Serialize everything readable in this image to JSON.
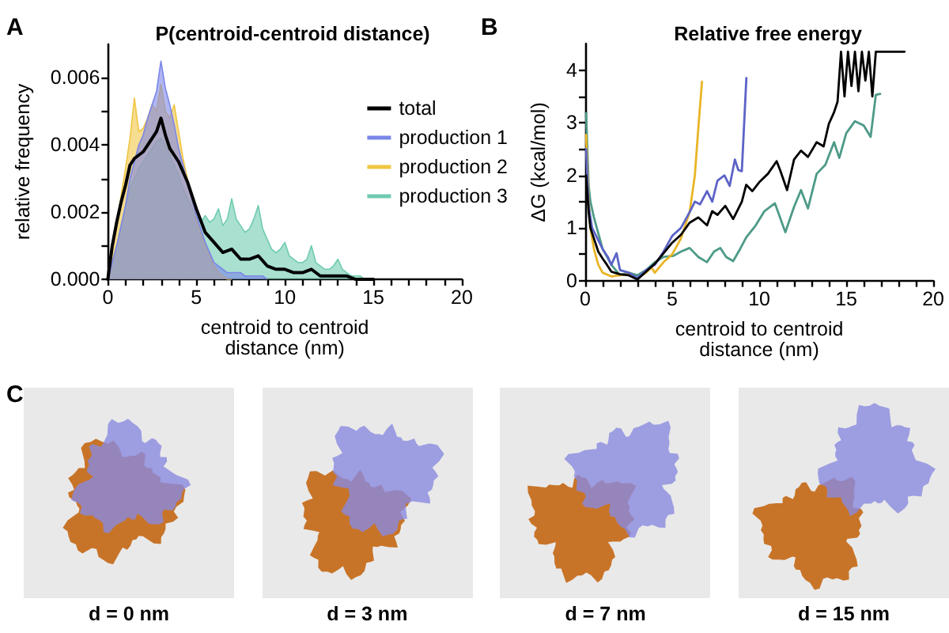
{
  "chart_data": [
    {
      "type": "area",
      "title": "P(centroid-centroid distance)",
      "xlabel": "centroid to centroid distance (nm)",
      "ylabel": "relative frequency",
      "annotations": [
        "A"
      ],
      "legend": "top right",
      "xlim": [
        0,
        20
      ],
      "xticks": [
        0,
        {
          "value": 1,
          "label": null
        },
        {
          "value": 2,
          "label": null
        },
        {
          "value": 3,
          "label": null
        },
        {
          "value": 4,
          "label": null
        },
        5,
        {
          "value": 6,
          "label": null
        },
        {
          "value": 7,
          "label": null
        },
        {
          "value": 8,
          "label": null
        },
        {
          "value": 9,
          "label": null
        },
        10,
        {
          "value": 11,
          "label": null
        },
        {
          "value": 12,
          "label": null
        },
        {
          "value": 13,
          "label": null
        },
        {
          "value": 14,
          "label": null
        },
        15,
        {
          "value": 16,
          "label": null
        },
        {
          "value": 17,
          "label": null
        },
        {
          "value": 18,
          "label": null
        },
        {
          "value": 19,
          "label": null
        },
        20
      ],
      "ylim": [
        0,
        0.007
      ],
      "yticks": [
        {
          "value": 0,
          "label": "0.000"
        },
        {
          "value": 0.001,
          "label": null
        },
        0.002,
        {
          "value": 0.003,
          "label": null
        },
        0.004,
        {
          "value": 0.005,
          "label": null
        },
        0.006
      ],
      "series": [
        {
          "name": "total",
          "type": "line",
          "color": "#000000",
          "x": [
            0,
            0.25,
            0.5,
            0.75,
            1,
            1.25,
            1.5,
            1.75,
            2,
            2.25,
            2.5,
            2.75,
            3,
            3.25,
            3.5,
            3.75,
            4,
            4.25,
            4.5,
            4.75,
            5,
            5.5,
            6,
            6.5,
            7,
            7.5,
            8,
            8.5,
            9,
            9.5,
            10,
            10.5,
            11,
            11.5,
            12,
            12.5,
            13,
            13.5,
            14,
            14.5,
            15
          ],
          "values": [
            0,
            0.001,
            0.0017,
            0.0023,
            0.0028,
            0.0034,
            0.0036,
            0.0037,
            0.0038,
            0.004,
            0.0042,
            0.0044,
            0.0048,
            0.0043,
            0.0039,
            0.0037,
            0.0035,
            0.0032,
            0.0029,
            0.0025,
            0.0021,
            0.0014,
            0.0011,
            0.0008,
            0.0009,
            0.0006,
            0.0006,
            0.0007,
            0.0004,
            0.0003,
            0.0003,
            0.0002,
            0.0002,
            0.0003,
            0.0001,
            0.0001,
            0.0001,
            0.0001,
            0,
            0,
            0
          ]
        },
        {
          "name": "production 1",
          "color": "#7b86e8",
          "x": [
            0,
            0.25,
            0.5,
            0.75,
            1,
            1.25,
            1.5,
            1.75,
            2,
            2.25,
            2.5,
            2.75,
            3,
            3.25,
            3.5,
            3.75,
            4,
            4.25,
            4.5,
            4.75,
            5,
            5.25,
            5.5,
            5.75,
            6,
            6.25,
            6.5,
            6.75,
            7,
            7.25,
            7.5,
            7.75,
            8,
            8.25,
            8.5,
            8.75,
            9
          ],
          "values": [
            0,
            0.0005,
            0.001,
            0.0016,
            0.0022,
            0.003,
            0.0035,
            0.004,
            0.0043,
            0.0048,
            0.0052,
            0.0056,
            0.0065,
            0.0057,
            0.0052,
            0.0046,
            0.0039,
            0.0034,
            0.0029,
            0.0024,
            0.0019,
            0.0015,
            0.0011,
            0.0008,
            0.0005,
            0.0004,
            0.0003,
            0.0002,
            0.0002,
            0.0002,
            0.0002,
            0.0001,
            0.0001,
            0.0001,
            0.0001,
            0.0001,
            0
          ]
        },
        {
          "name": "production 2",
          "color": "#f0c644",
          "x": [
            0,
            0.25,
            0.5,
            0.75,
            1,
            1.25,
            1.5,
            1.75,
            2,
            2.25,
            2.5,
            2.75,
            3,
            3.25,
            3.5,
            3.75,
            4,
            4.25,
            4.5,
            4.75,
            5,
            5.25,
            5.5,
            5.75,
            6,
            6.25,
            6.5,
            6.75,
            7
          ],
          "values": [
            0,
            0.0008,
            0.0016,
            0.0025,
            0.0033,
            0.0042,
            0.0054,
            0.0044,
            0.0045,
            0.0048,
            0.0052,
            0.005,
            0.0058,
            0.005,
            0.0048,
            0.0052,
            0.0044,
            0.0036,
            0.003,
            0.0024,
            0.0018,
            0.0014,
            0.001,
            0.0007,
            0.0004,
            0.0002,
            0.0001,
            0,
            0
          ]
        },
        {
          "name": "production 3",
          "color": "#6fcbb0",
          "x": [
            0,
            0.25,
            0.5,
            0.75,
            1,
            1.25,
            1.5,
            1.75,
            2,
            2.25,
            2.5,
            2.75,
            3,
            3.25,
            3.5,
            3.75,
            4,
            4.25,
            4.5,
            4.75,
            5,
            5.25,
            5.5,
            5.75,
            6,
            6.25,
            6.5,
            6.75,
            7,
            7.25,
            7.5,
            7.75,
            8,
            8.25,
            8.5,
            8.75,
            9,
            9.25,
            9.5,
            9.75,
            10,
            10.25,
            10.5,
            10.75,
            11,
            11.25,
            11.5,
            11.75,
            12,
            12.25,
            12.5,
            12.75,
            13,
            13.25,
            13.5,
            13.75,
            14,
            14.25,
            14.5
          ],
          "values": [
            0,
            0.0005,
            0.001,
            0.0016,
            0.0022,
            0.0027,
            0.003,
            0.0033,
            0.0035,
            0.0037,
            0.0039,
            0.0041,
            0.0042,
            0.004,
            0.0037,
            0.0034,
            0.0031,
            0.0027,
            0.0024,
            0.0021,
            0.0019,
            0.0017,
            0.0019,
            0.0017,
            0.0018,
            0.0021,
            0.0016,
            0.0018,
            0.0024,
            0.0018,
            0.0016,
            0.0014,
            0.0015,
            0.0018,
            0.0022,
            0.0015,
            0.0012,
            0.0009,
            0.0008,
            0.0009,
            0.0011,
            0.0007,
            0.0006,
            0.0005,
            0.0005,
            0.0006,
            0.001,
            0.0005,
            0.0004,
            0.0003,
            0.0003,
            0.0004,
            0.0006,
            0.0003,
            0.0002,
            0.0001,
            0.0001,
            0.0001,
            0
          ]
        }
      ]
    },
    {
      "type": "line",
      "title": "Relative free energy",
      "xlabel": "centroid to centroid distance (nm)",
      "ylabel": "ΔG (kcal/mol)",
      "annotations": [
        "B"
      ],
      "xlim": [
        0,
        20
      ],
      "xticks": [
        0,
        {
          "value": 1,
          "label": null
        },
        {
          "value": 2,
          "label": null
        },
        {
          "value": 3,
          "label": null
        },
        {
          "value": 4,
          "label": null
        },
        5,
        {
          "value": 6,
          "label": null
        },
        {
          "value": 7,
          "label": null
        },
        {
          "value": 8,
          "label": null
        },
        {
          "value": 9,
          "label": null
        },
        10,
        {
          "value": 11,
          "label": null
        },
        {
          "value": 12,
          "label": null
        },
        {
          "value": 13,
          "label": null
        },
        {
          "value": 14,
          "label": null
        },
        15,
        {
          "value": 16,
          "label": null
        },
        {
          "value": 17,
          "label": null
        },
        {
          "value": 18,
          "label": null
        },
        {
          "value": 19,
          "label": null
        },
        20
      ],
      "ylim": [
        0,
        4.5
      ],
      "yticks": [
        0,
        {
          "value": 0.5,
          "label": null
        },
        1,
        {
          "value": 1.5,
          "label": null
        },
        2,
        {
          "value": 2.5,
          "label": null
        },
        3,
        {
          "value": 3.5,
          "label": null
        },
        4
      ],
      "series": [
        {
          "color": "#000000",
          "x": [
            0.05,
            0.2,
            0.3,
            0.5,
            0.75,
            1,
            1.25,
            1.5,
            2,
            2.5,
            3,
            3.5,
            4,
            4.5,
            5,
            5.5,
            6,
            6.5,
            7,
            7.3,
            7.6,
            8.05,
            8.5,
            9,
            9.25,
            9.6,
            10,
            10.5,
            11,
            11.2,
            11.6,
            12,
            12.4,
            12.8,
            13.3,
            13.7,
            14,
            14.3,
            14.5,
            14.7,
            14.9,
            15.1,
            15.3,
            15.5,
            15.7,
            15.9,
            16.1,
            16.3,
            16.5,
            16.7,
            18.35
          ],
          "values": [
            2.0,
            1.3,
            1.0,
            0.8,
            0.55,
            0.42,
            0.3,
            0.17,
            0.12,
            0.1,
            0.02,
            0.17,
            0.32,
            0.52,
            0.72,
            0.87,
            1.1,
            1.2,
            1.05,
            1.32,
            1.25,
            1.42,
            1.17,
            1.5,
            1.82,
            1.7,
            1.87,
            2.03,
            2.27,
            2.1,
            1.72,
            2.3,
            2.47,
            2.35,
            2.63,
            2.55,
            2.98,
            3.2,
            3.4,
            4.35,
            3.5,
            4.35,
            3.7,
            4.35,
            3.6,
            4.35,
            3.8,
            4.35,
            3.5,
            4.35,
            4.35
          ]
        },
        {
          "color": "#5c63c6",
          "x": [
            0.05,
            0.2,
            0.4,
            0.7,
            1,
            1.3,
            1.5,
            1.8,
            2,
            2.5,
            3,
            3.5,
            4,
            4.5,
            5,
            5.5,
            6,
            6.3,
            6.6,
            7,
            7.3,
            7.6,
            8,
            8.3,
            8.6,
            8.8,
            9,
            9.26
          ],
          "values": [
            2.5,
            1.4,
            1.0,
            0.8,
            0.6,
            0.45,
            0.3,
            0.52,
            0.2,
            0.15,
            0.05,
            0.2,
            0.3,
            0.55,
            0.85,
            1.0,
            1.3,
            1.5,
            1.45,
            1.7,
            1.5,
            1.9,
            2.0,
            1.8,
            2.3,
            2.1,
            2.08,
            3.85
          ]
        },
        {
          "color": "#e9b526",
          "x": [
            0.05,
            0.2,
            0.3,
            0.5,
            0.75,
            1,
            1.5,
            2,
            2.5,
            3,
            3.5,
            3.8,
            4,
            4.5,
            5,
            5.5,
            6,
            6.3,
            6.5,
            6.71
          ],
          "values": [
            2.77,
            1.5,
            1.0,
            0.6,
            0.3,
            0.15,
            0.08,
            0.1,
            0.12,
            0.05,
            0.15,
            0.25,
            0.15,
            0.35,
            0.5,
            0.8,
            1.3,
            2.0,
            2.9,
            3.78
          ]
        },
        {
          "color": "#4d9a88",
          "x": [
            0.05,
            0.2,
            0.3,
            0.5,
            1,
            1.5,
            2,
            2.5,
            3,
            3.5,
            4,
            4.5,
            5.07,
            5.5,
            6,
            6.5,
            7,
            7.4,
            7.76,
            8.1,
            8.5,
            8.9,
            9.25,
            9.8,
            10.3,
            10.9,
            11.5,
            12,
            12.4,
            12.8,
            13.3,
            13.8,
            14.3,
            14.6,
            15,
            15.5,
            16,
            16.4,
            16.7,
            16.95
          ],
          "values": [
            3.18,
            1.8,
            1.5,
            1.2,
            0.6,
            0.3,
            0.1,
            0.15,
            0.1,
            0.2,
            0.35,
            0.45,
            0.47,
            0.55,
            0.62,
            0.45,
            0.35,
            0.55,
            0.62,
            0.45,
            0.37,
            0.6,
            0.82,
            1.05,
            1.32,
            1.47,
            0.92,
            1.4,
            1.72,
            1.37,
            2.03,
            2.2,
            2.63,
            2.33,
            2.8,
            3.03,
            2.95,
            2.73,
            3.53,
            3.55
          ]
        }
      ]
    },
    {
      "type": "other",
      "annotations": [
        "C",
        "d = 0 nm",
        "d = 3 nm",
        "d = 7 nm",
        "d = 15 nm"
      ]
    }
  ]
}
